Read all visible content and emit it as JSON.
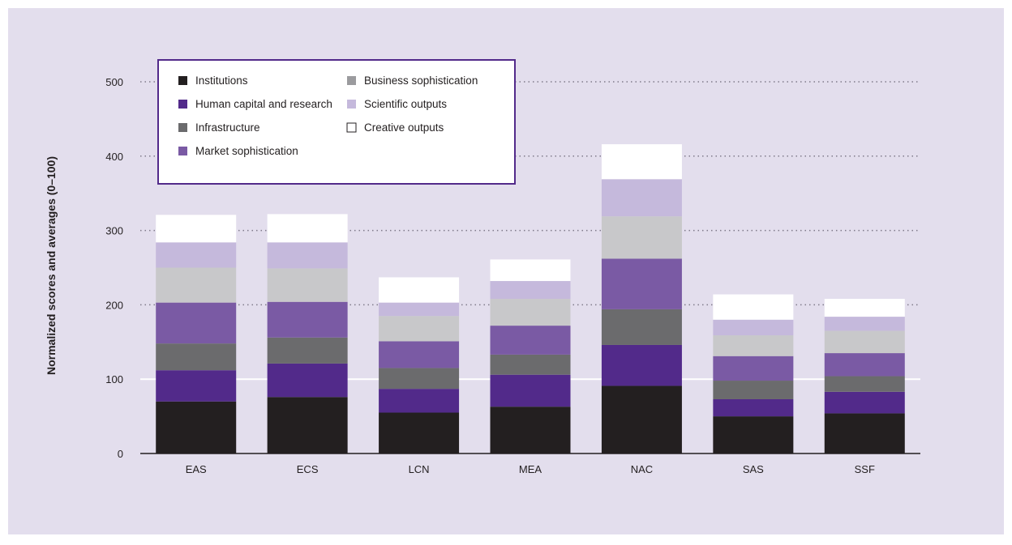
{
  "chart_data": {
    "type": "bar",
    "stacked": true,
    "ylabel": "Normalized scores and averages (0–100)",
    "xlabel": "",
    "ylim": [
      0,
      500
    ],
    "yticks": [
      0,
      100,
      200,
      300,
      400,
      500
    ],
    "grid": "dotted horizontal",
    "legend_position": "top-left",
    "categories": [
      "EAS",
      "ECS",
      "LCN",
      "MEA",
      "NAC",
      "SAS",
      "SSF"
    ],
    "series": [
      {
        "name": "Institutions",
        "color": "#231f20",
        "values": [
          70,
          76,
          55,
          63,
          91,
          50,
          54
        ]
      },
      {
        "name": "Human capital and research",
        "color": "#522a8a",
        "values": [
          42,
          45,
          32,
          43,
          55,
          23,
          29
        ]
      },
      {
        "name": "Infrastructure",
        "color": "#6b6b6d",
        "values": [
          36,
          35,
          28,
          27,
          48,
          25,
          21
        ]
      },
      {
        "name": "Market sophistication",
        "color": "#7a5aa4",
        "values": [
          55,
          48,
          36,
          39,
          68,
          33,
          31
        ]
      },
      {
        "name": "Business sophistication",
        "color": "#9b9b9e",
        "values": [
          0,
          0,
          0,
          0,
          0,
          0,
          0
        ]
      },
      {
        "name": "Scientific outputs",
        "color": "#c5b9dc",
        "values": [
          34,
          35,
          18,
          24,
          50,
          21,
          19
        ]
      },
      {
        "name": "Creative outputs",
        "color": "#ffffff",
        "values": [
          37,
          38,
          34,
          29,
          47,
          34,
          24
        ]
      }
    ],
    "extra_layer": {
      "color": "#c8c8ca",
      "values": [
        47,
        45,
        34,
        36,
        57,
        28,
        30
      ]
    }
  }
}
